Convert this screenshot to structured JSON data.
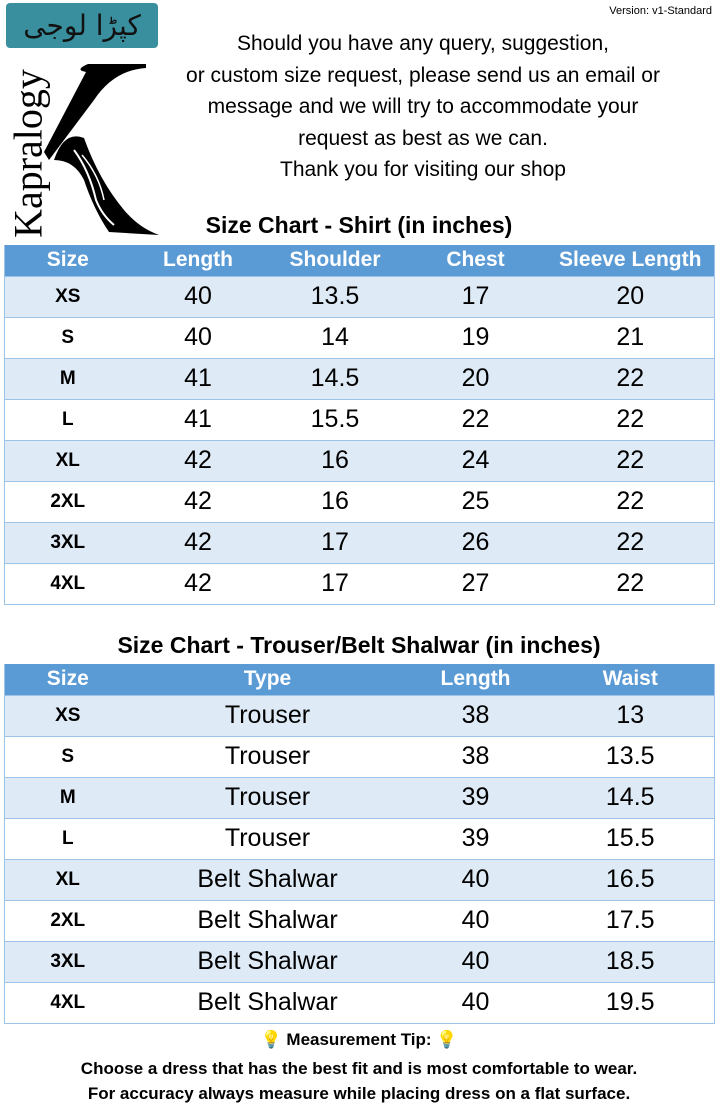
{
  "version": "Version: v1-Standard",
  "logo": {
    "urdu": "کپڑا لوجی",
    "brand": "Kapralogy"
  },
  "message": [
    "Should you have any query, suggestion,",
    "or custom size request, please send us an email or",
    "message and we will try to accommodate your",
    "request as best as we can.",
    "Thank you for visiting our shop"
  ],
  "shirt": {
    "title": "Size Chart - Shirt (in inches)",
    "headers": [
      "Size",
      "Length",
      "Shoulder",
      "Chest",
      "Sleeve Length"
    ],
    "rows": [
      [
        "XS",
        "40",
        "13.5",
        "17",
        "20"
      ],
      [
        "S",
        "40",
        "14",
        "19",
        "21"
      ],
      [
        "M",
        "41",
        "14.5",
        "20",
        "22"
      ],
      [
        "L",
        "41",
        "15.5",
        "22",
        "22"
      ],
      [
        "XL",
        "42",
        "16",
        "24",
        "22"
      ],
      [
        "2XL",
        "42",
        "16",
        "25",
        "22"
      ],
      [
        "3XL",
        "42",
        "17",
        "26",
        "22"
      ],
      [
        "4XL",
        "42",
        "17",
        "27",
        "22"
      ]
    ]
  },
  "trouser": {
    "title": "Size Chart - Trouser/Belt Shalwar (in inches)",
    "headers": [
      "Size",
      "Type",
      "Length",
      "Waist"
    ],
    "rows": [
      [
        "XS",
        "Trouser",
        "38",
        "13"
      ],
      [
        "S",
        "Trouser",
        "38",
        "13.5"
      ],
      [
        "M",
        "Trouser",
        "39",
        "14.5"
      ],
      [
        "L",
        "Trouser",
        "39",
        "15.5"
      ],
      [
        "XL",
        "Belt Shalwar",
        "40",
        "16.5"
      ],
      [
        "2XL",
        "Belt Shalwar",
        "40",
        "17.5"
      ],
      [
        "3XL",
        "Belt Shalwar",
        "40",
        "18.5"
      ],
      [
        "4XL",
        "Belt Shalwar",
        "40",
        "19.5"
      ]
    ]
  },
  "tip": {
    "icon": "lightbulb-icon",
    "label": "Measurement Tip:",
    "lines": [
      "Choose a dress that has the best fit and is most comfortable to wear.",
      "For accuracy always measure while placing dress on a flat surface."
    ]
  },
  "colors": {
    "header": "#5b9bd5",
    "alt_row": "#deeaf6",
    "logo_bg": "#3a8f9e"
  }
}
